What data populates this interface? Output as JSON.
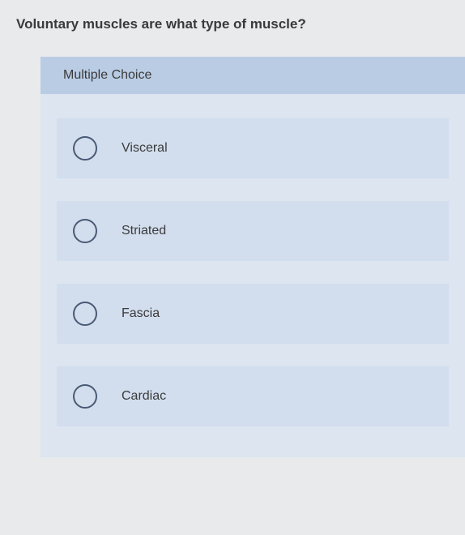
{
  "question": {
    "text": "Voluntary muscles are what type of muscle?"
  },
  "panel": {
    "header": "Multiple Choice",
    "header_bg": "#b9cce4",
    "panel_bg": "#dce5f0",
    "option_bg": "#d2deee",
    "radio_border": "#4a5a75"
  },
  "options": [
    {
      "label": "Visceral",
      "selected": false
    },
    {
      "label": "Striated",
      "selected": false
    },
    {
      "label": "Fascia",
      "selected": false
    },
    {
      "label": "Cardiac",
      "selected": false
    }
  ],
  "page_bg": "#e8eaec",
  "text_color": "#3a3a3a"
}
